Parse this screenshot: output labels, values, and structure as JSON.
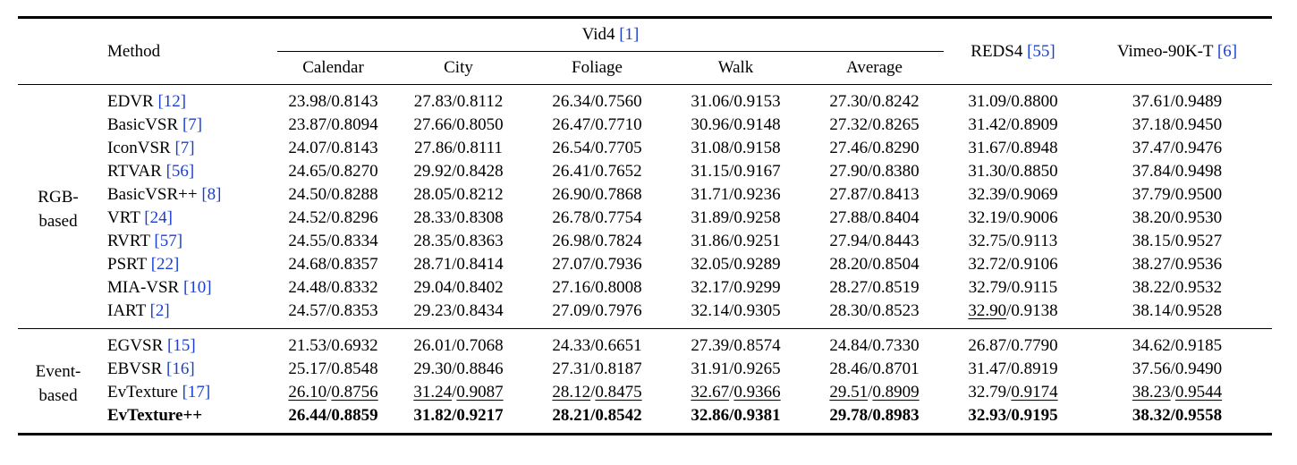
{
  "table": {
    "header": {
      "method": "Method",
      "vid4": "Vid4",
      "vid4_cite": "[1]",
      "vid4_subcols": [
        "Calendar",
        "City",
        "Foliage",
        "Walk",
        "Average"
      ],
      "reds4": "REDS4",
      "reds4_cite": "[55]",
      "vimeo": "Vimeo-90K-T",
      "vimeo_cite": "[6]"
    },
    "groups": [
      {
        "label_line1": "RGB-",
        "label_line2": "based",
        "rows": [
          {
            "name": "EDVR",
            "cite": "[12]",
            "values": [
              "23.98/0.8143",
              "27.83/0.8112",
              "26.34/0.7560",
              "31.06/0.9153",
              "27.30/0.8242",
              "31.09/0.8800",
              "37.61/0.9489"
            ]
          },
          {
            "name": "BasicVSR",
            "cite": "[7]",
            "values": [
              "23.87/0.8094",
              "27.66/0.8050",
              "26.47/0.7710",
              "30.96/0.9148",
              "27.32/0.8265",
              "31.42/0.8909",
              "37.18/0.9450"
            ]
          },
          {
            "name": "IconVSR",
            "cite": "[7]",
            "values": [
              "24.07/0.8143",
              "27.86/0.8111",
              "26.54/0.7705",
              "31.08/0.9158",
              "27.46/0.8290",
              "31.67/0.8948",
              "37.47/0.9476"
            ]
          },
          {
            "name": "RTVAR",
            "cite": "[56]",
            "values": [
              "24.65/0.8270",
              "29.92/0.8428",
              "26.41/0.7652",
              "31.15/0.9167",
              "27.90/0.8380",
              "31.30/0.8850",
              "37.84/0.9498"
            ]
          },
          {
            "name": "BasicVSR++",
            "cite": "[8]",
            "values": [
              "24.50/0.8288",
              "28.05/0.8212",
              "26.90/0.7868",
              "31.71/0.9236",
              "27.87/0.8413",
              "32.39/0.9069",
              "37.79/0.9500"
            ]
          },
          {
            "name": "VRT",
            "cite": "[24]",
            "values": [
              "24.52/0.8296",
              "28.33/0.8308",
              "26.78/0.7754",
              "31.89/0.9258",
              "27.88/0.8404",
              "32.19/0.9006",
              "38.20/0.9530"
            ]
          },
          {
            "name": "RVRT",
            "cite": "[57]",
            "values": [
              "24.55/0.8334",
              "28.35/0.8363",
              "26.98/0.7824",
              "31.86/0.9251",
              "27.94/0.8443",
              "32.75/0.9113",
              "38.15/0.9527"
            ]
          },
          {
            "name": "PSRT",
            "cite": "[22]",
            "values": [
              "24.68/0.8357",
              "28.71/0.8414",
              "27.07/0.7936",
              "32.05/0.9289",
              "28.20/0.8504",
              "32.72/0.9106",
              "38.27/0.9536"
            ]
          },
          {
            "name": "MIA-VSR",
            "cite": "[10]",
            "values": [
              "24.48/0.8332",
              "29.04/0.8402",
              "27.16/0.8008",
              "32.17/0.9299",
              "28.27/0.8519",
              "32.79/0.9115",
              "38.22/0.9532"
            ]
          },
          {
            "name": "IART",
            "cite": "[2]",
            "values": [
              "24.57/0.8353",
              "29.23/0.8434",
              "27.09/0.7976",
              "32.14/0.9305",
              "28.30/0.8523",
              "32.90/0.9138",
              "38.14/0.9528"
            ]
          }
        ]
      },
      {
        "label_line1": "Event-",
        "label_line2": "based",
        "rows": [
          {
            "name": "EGVSR",
            "cite": "[15]",
            "values": [
              "21.53/0.6932",
              "26.01/0.7068",
              "24.33/0.6651",
              "27.39/0.8574",
              "24.84/0.7330",
              "26.87/0.7790",
              "34.62/0.9185"
            ]
          },
          {
            "name": "EBVSR",
            "cite": "[16]",
            "values": [
              "25.17/0.8548",
              "29.30/0.8846",
              "27.31/0.8187",
              "31.91/0.9265",
              "28.46/0.8701",
              "31.47/0.8919",
              "37.56/0.9490"
            ]
          },
          {
            "name": "EvTexture",
            "cite": "[17]",
            "values": [
              "26.10/0.8756",
              "31.24/0.9087",
              "28.12/0.8475",
              "32.67/0.9366",
              "29.51/0.8909",
              "32.79/0.9174",
              "38.23/0.9544"
            ]
          },
          {
            "name": "EvTexture++",
            "cite": "",
            "values": [
              "26.44/0.8859",
              "31.82/0.9217",
              "28.21/0.8542",
              "32.86/0.9381",
              "29.78/0.8983",
              "32.93/0.9195",
              "38.32/0.9558"
            ]
          }
        ]
      }
    ]
  }
}
